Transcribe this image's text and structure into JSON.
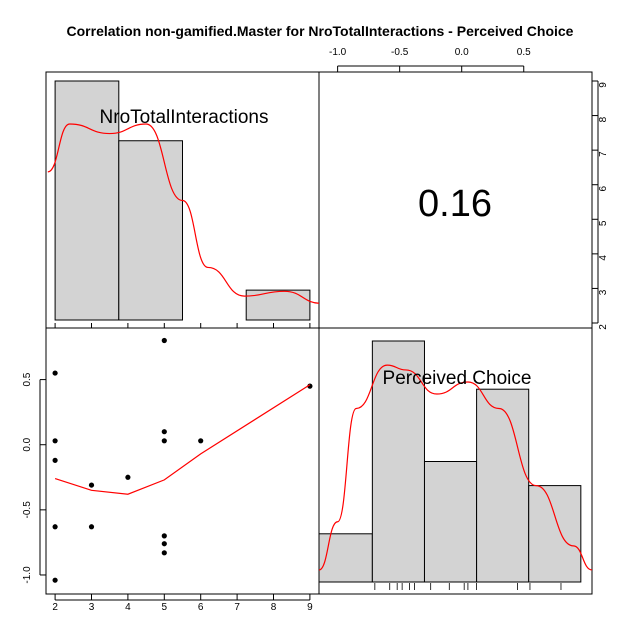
{
  "title": "Correlation non-gamified.Master for NroTotalInteractions - Perceived Choice",
  "chart_data": {
    "type": "scatter-matrix",
    "title": "Correlation non-gamified.Master for NroTotalInteractions - Perceived Choice",
    "variables": [
      "NroTotalInteractions",
      "Perceived Choice"
    ],
    "correlation": "0.16",
    "hist_nro": {
      "breaks": [
        2,
        3.75,
        5.5,
        7.25,
        9
      ],
      "relative_heights": [
        1.0,
        0.75,
        0.0,
        0.125
      ]
    },
    "hist_pc": {
      "breaks": [
        -1.15,
        -0.72,
        -0.3,
        0.12,
        0.54,
        0.96
      ],
      "relative_heights": [
        0.2,
        1.0,
        0.5,
        0.8,
        0.4
      ]
    },
    "rug_pc": [
      -0.7,
      -0.58,
      -0.52,
      -0.48,
      -0.42,
      -0.38,
      -0.25,
      -0.1,
      0.02,
      0.05,
      0.12,
      0.45,
      0.55,
      0.8
    ],
    "density_nro": [
      [
        1.8,
        0.62
      ],
      [
        2.4,
        0.82
      ],
      [
        3.5,
        0.78
      ],
      [
        4.5,
        0.82
      ],
      [
        5.5,
        0.5
      ],
      [
        6.2,
        0.22
      ],
      [
        7.2,
        0.1
      ],
      [
        8.3,
        0.12
      ],
      [
        9.3,
        0.07
      ]
    ],
    "density_pc": [
      [
        -1.15,
        0.05
      ],
      [
        -1.0,
        0.25
      ],
      [
        -0.85,
        0.72
      ],
      [
        -0.6,
        0.9
      ],
      [
        -0.45,
        0.88
      ],
      [
        -0.2,
        0.78
      ],
      [
        0.05,
        0.83
      ],
      [
        0.3,
        0.72
      ],
      [
        0.6,
        0.4
      ],
      [
        0.9,
        0.15
      ],
      [
        1.05,
        0.05
      ]
    ],
    "scatter": {
      "x": [
        2,
        2,
        2,
        2,
        2,
        3,
        3,
        4,
        5,
        5,
        5,
        5,
        5,
        5,
        6,
        9
      ],
      "y": [
        -1.04,
        -0.63,
        -0.12,
        0.03,
        0.55,
        -0.63,
        -0.31,
        -0.25,
        -0.83,
        -0.76,
        -0.7,
        0.1,
        0.8,
        0.03,
        0.03,
        0.45
      ]
    },
    "loess": [
      [
        2,
        -0.26
      ],
      [
        3,
        -0.35
      ],
      [
        4,
        -0.38
      ],
      [
        5,
        -0.27
      ],
      [
        6,
        -0.07
      ],
      [
        9,
        0.46
      ]
    ],
    "x_ticks_nro": [
      2,
      3,
      4,
      5,
      6,
      7,
      8,
      9
    ],
    "y_ticks_pc": [
      -1.0,
      -0.5,
      0.0,
      0.5
    ],
    "top_ticks_pc": [
      -1.0,
      -0.5,
      0.0,
      0.5
    ],
    "right_ticks_nro": [
      2,
      3,
      4,
      5,
      6,
      7,
      8,
      9
    ],
    "x_range_nro": [
      1.75,
      9.25
    ],
    "y_range_pc": [
      -1.1,
      0.85
    ],
    "x_range_pc_diag": [
      -1.15,
      1.05
    ]
  },
  "colors": {
    "bar_fill": "#d3d3d3",
    "bar_stroke": "#000000",
    "smooth_line": "#ff0000",
    "points": "#000000"
  }
}
